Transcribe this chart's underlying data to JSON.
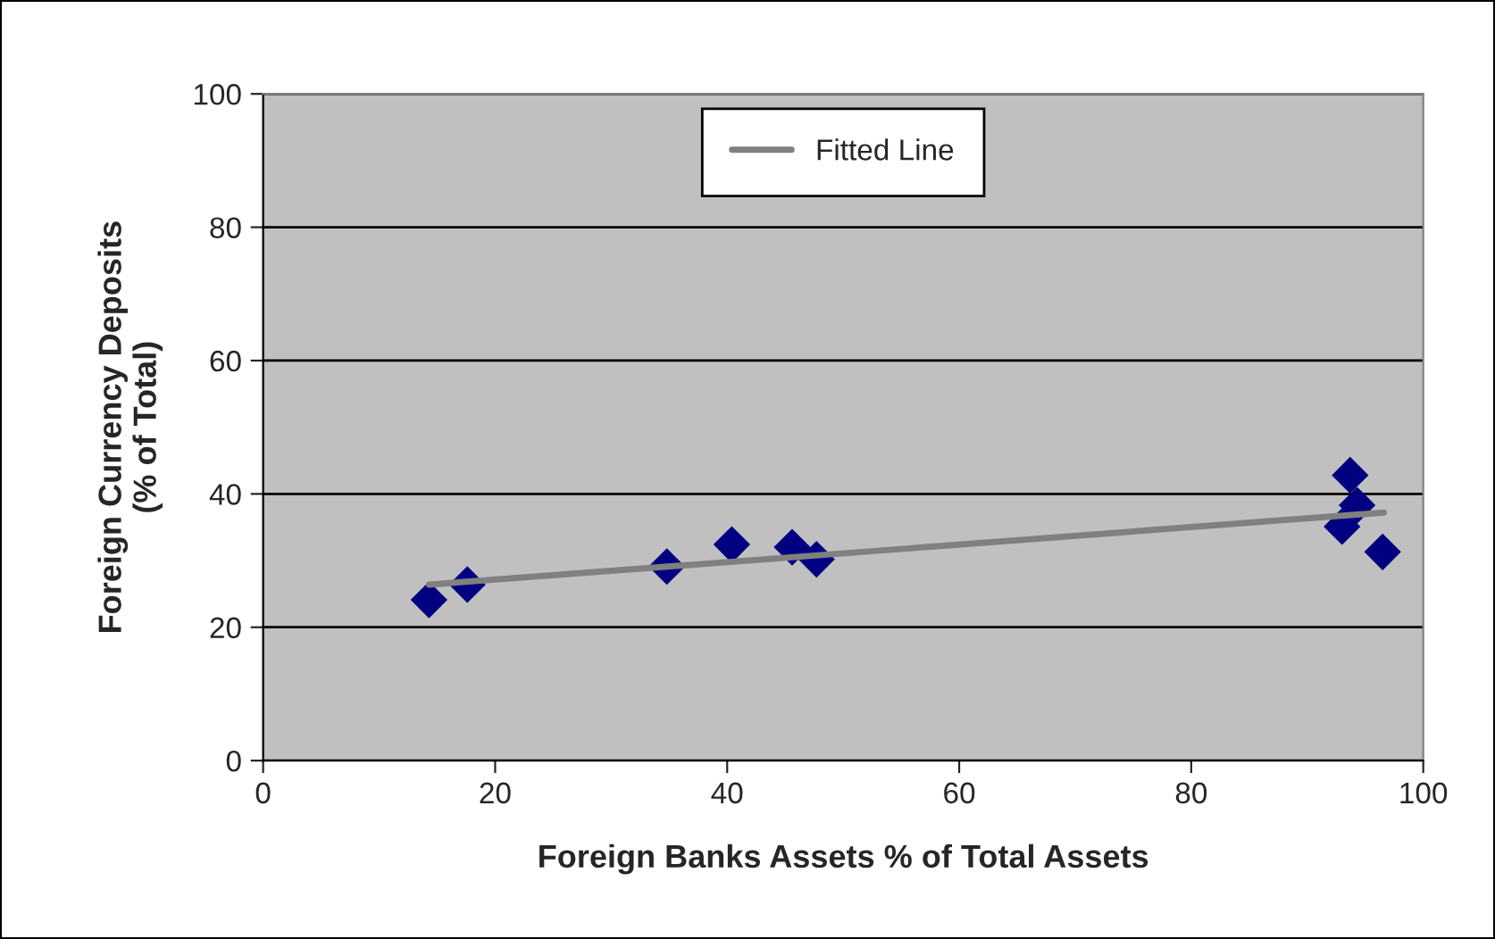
{
  "chart_data": {
    "type": "scatter",
    "xlabel": "Foreign Banks Assets % of Total Assets",
    "ylabel": "Foreign Currency Deposits\n(% of Total)",
    "xlim": [
      0,
      100
    ],
    "ylim": [
      0,
      100
    ],
    "xticks": [
      0,
      20,
      40,
      60,
      80,
      100
    ],
    "yticks": [
      0,
      20,
      40,
      60,
      80,
      100
    ],
    "grid": "y",
    "legend": "top",
    "series": [
      {
        "color": "#000080",
        "marker": "diamond",
        "x": [
          14.3,
          17.6,
          34.8,
          40.4,
          45.6,
          47.7,
          93.7,
          94.3,
          93.0,
          96.5
        ],
        "values": [
          24.1,
          26.4,
          29.1,
          32.4,
          32.0,
          30.2,
          42.8,
          38.3,
          35.1,
          31.3
        ]
      },
      {
        "type": "line",
        "name": "Fitted Line",
        "color": "#808080",
        "marker": "none",
        "line_style": "solid",
        "x": [
          14.3,
          96.6
        ],
        "values": [
          26.4,
          37.2
        ]
      }
    ]
  }
}
